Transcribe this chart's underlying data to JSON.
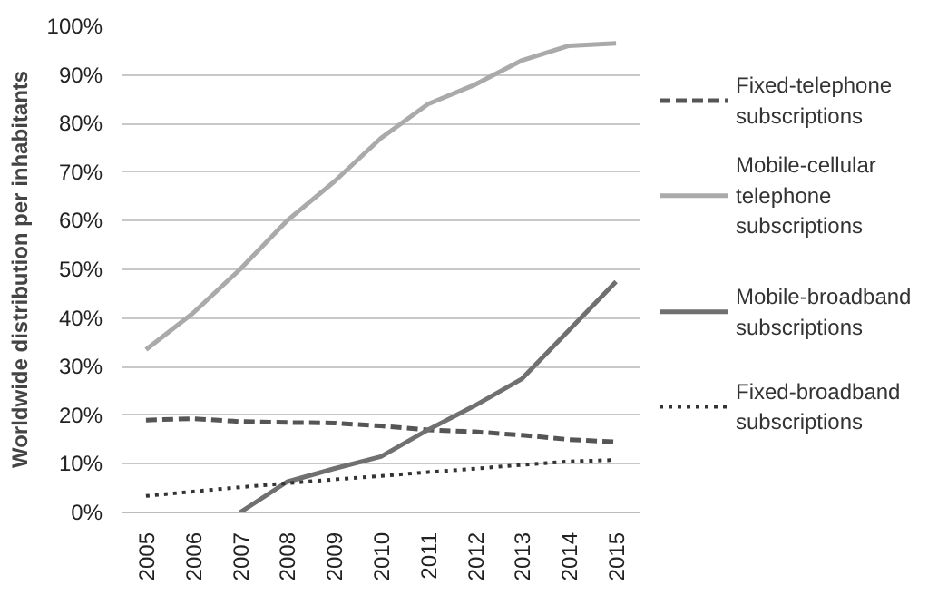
{
  "chart_data": {
    "type": "line",
    "ylabel": "Worldwide distribution per inhabitants",
    "categories": [
      "2005",
      "2006",
      "2007",
      "2008",
      "2009",
      "2010",
      "2011",
      "2012",
      "2013",
      "2014",
      "2015"
    ],
    "series": [
      {
        "name": "Fixed-telephone subscriptions",
        "color": "#555555",
        "line_style": "dashed",
        "values": [
          19,
          19.3,
          18.7,
          18.5,
          18.4,
          17.8,
          17,
          16.6,
          15.9,
          15,
          14.5
        ]
      },
      {
        "name": "Mobile-cellular telephone subscriptions",
        "color": "#aaaaaa",
        "line_style": "solid",
        "values": [
          33.5,
          41,
          50,
          60,
          68,
          77,
          84,
          88,
          93,
          96,
          96.5
        ]
      },
      {
        "name": "Mobile-broadband subscriptions",
        "color": "#707070",
        "line_style": "solid",
        "values": [
          null,
          null,
          0,
          6.3,
          9,
          11.5,
          17,
          22,
          27.5,
          37.5,
          47.5
        ]
      },
      {
        "name": "Fixed-broadband subscriptions",
        "color": "#333333",
        "line_style": "dotted",
        "values": [
          3.4,
          4.3,
          5.2,
          6,
          6.8,
          7.5,
          8.3,
          9,
          9.8,
          10.5,
          10.8
        ]
      }
    ],
    "ylim": [
      0,
      100
    ],
    "yticks": [
      {
        "value": 0,
        "label": "0%"
      },
      {
        "value": 10,
        "label": "10%"
      },
      {
        "value": 20,
        "label": "20%"
      },
      {
        "value": 30,
        "label": "30%"
      },
      {
        "value": 40,
        "label": "40%"
      },
      {
        "value": 50,
        "label": "50%"
      },
      {
        "value": 60,
        "label": "60%"
      },
      {
        "value": 70,
        "label": "70%"
      },
      {
        "value": 80,
        "label": "80%"
      },
      {
        "value": 90,
        "label": "90%"
      },
      {
        "value": 100,
        "label": "100%"
      }
    ],
    "grid": "y",
    "legend": "right",
    "marker": "none"
  }
}
